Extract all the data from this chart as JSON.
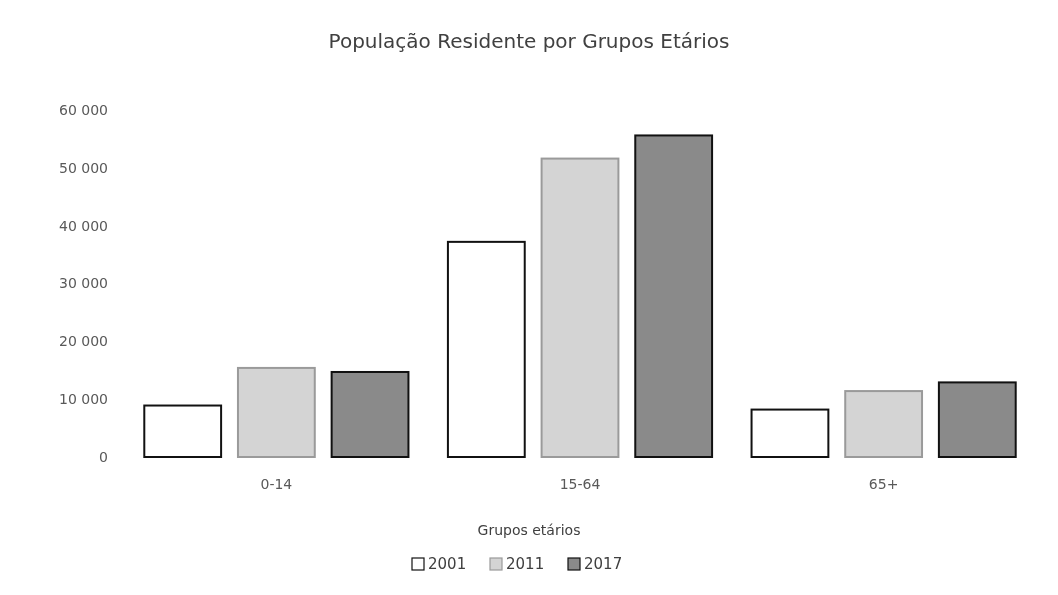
{
  "chart_data": {
    "type": "bar",
    "title": "População Residente por Grupos Etários",
    "xlabel": "Grupos etários",
    "categories": [
      "0-14",
      "15-64",
      "65+"
    ],
    "series": [
      {
        "name": "2001",
        "color": "#ffffff",
        "values": [
          8900,
          37200,
          8200
        ]
      },
      {
        "name": "2011",
        "color": "#d4d4d4",
        "values": [
          15400,
          51600,
          11400
        ]
      },
      {
        "name": "2017",
        "color": "#8a8a8a",
        "values": [
          14700,
          55600,
          12900
        ]
      }
    ],
    "ylim": [
      0,
      60000
    ],
    "yticks": [
      0,
      {
        "value": 10000,
        "label": "10 000"
      },
      {
        "value": 20000,
        "label": "20 000"
      },
      {
        "value": 30000,
        "label": "30 000"
      },
      {
        "value": 40000,
        "label": "40 000"
      },
      {
        "value": 50000,
        "label": "50 000"
      },
      {
        "value": 60000,
        "label": "60 000"
      }
    ],
    "grid": false,
    "legend": "bottom"
  }
}
